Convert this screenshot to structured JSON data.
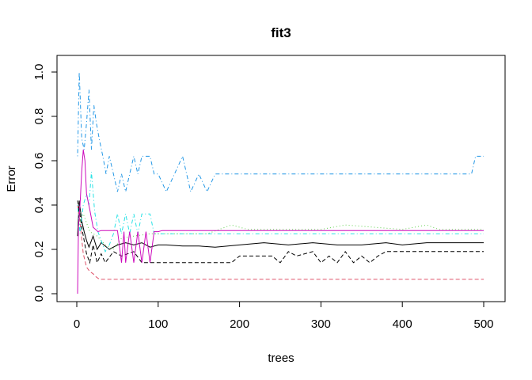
{
  "chart_data": {
    "type": "line",
    "title": "fit3",
    "xlabel": "trees",
    "ylabel": "Error",
    "xlim": [
      0,
      500
    ],
    "ylim": [
      0.0,
      1.0
    ],
    "x_ticks": [
      0,
      100,
      200,
      300,
      400,
      500
    ],
    "y_ticks": [
      0.0,
      0.2,
      0.4,
      0.6,
      0.8,
      1.0
    ],
    "x_tick_labels": [
      "0",
      "100",
      "200",
      "300",
      "400",
      "500"
    ],
    "y_tick_labels": [
      "0.0",
      "0.2",
      "0.4",
      "0.6",
      "0.8",
      "1.0"
    ],
    "grid": false,
    "legend": "none",
    "series": [
      {
        "color": "#000000",
        "dash": "solid",
        "x": [
          1,
          3,
          6,
          9,
          12,
          15,
          20,
          25,
          30,
          40,
          50,
          60,
          70,
          80,
          90,
          100,
          110,
          130,
          150,
          170,
          200,
          230,
          260,
          290,
          320,
          350,
          380,
          400,
          430,
          460,
          500
        ],
        "y": [
          0.26,
          0.42,
          0.33,
          0.28,
          0.24,
          0.21,
          0.26,
          0.2,
          0.23,
          0.2,
          0.22,
          0.23,
          0.22,
          0.23,
          0.21,
          0.22,
          0.22,
          0.215,
          0.215,
          0.21,
          0.22,
          0.23,
          0.22,
          0.23,
          0.22,
          0.22,
          0.23,
          0.22,
          0.23,
          0.23,
          0.23
        ]
      },
      {
        "color": "#000000",
        "dash": "dashed",
        "x": [
          1,
          3,
          6,
          9,
          12,
          16,
          20,
          25,
          30,
          35,
          45,
          55,
          70,
          80,
          100,
          150,
          190,
          200,
          240,
          250,
          260,
          270,
          290,
          300,
          310,
          320,
          330,
          340,
          350,
          360,
          370,
          380,
          400,
          500
        ],
        "y": [
          0.42,
          0.38,
          0.3,
          0.24,
          0.18,
          0.14,
          0.22,
          0.14,
          0.18,
          0.14,
          0.19,
          0.17,
          0.19,
          0.14,
          0.14,
          0.14,
          0.14,
          0.17,
          0.17,
          0.14,
          0.19,
          0.17,
          0.19,
          0.14,
          0.17,
          0.14,
          0.19,
          0.14,
          0.17,
          0.14,
          0.17,
          0.19,
          0.19,
          0.19
        ]
      },
      {
        "color": "#DF536B",
        "dash": "dashed",
        "x": [
          1,
          4,
          8,
          12,
          16,
          20,
          24,
          28,
          35,
          100,
          200,
          300,
          400,
          500
        ],
        "y": [
          0.4,
          0.32,
          0.18,
          0.12,
          0.1,
          0.09,
          0.075,
          0.065,
          0.065,
          0.065,
          0.065,
          0.065,
          0.065,
          0.065
        ]
      },
      {
        "color": "#61D04F",
        "dash": "dotted",
        "x": [
          1,
          8,
          16,
          25,
          35,
          45,
          55,
          70,
          90,
          100,
          130,
          160,
          190,
          210,
          250,
          300,
          330,
          400,
          430,
          445,
          500
        ],
        "y": [
          0.3,
          0.36,
          0.28,
          0.26,
          0.22,
          0.2,
          0.25,
          0.26,
          0.27,
          0.27,
          0.27,
          0.27,
          0.31,
          0.29,
          0.29,
          0.29,
          0.31,
          0.29,
          0.31,
          0.29,
          0.29
        ]
      },
      {
        "color": "#2297E6",
        "dash": "dotdash",
        "x": [
          1,
          3,
          6,
          9,
          12,
          15,
          18,
          21,
          24,
          28,
          32,
          36,
          40,
          45,
          50,
          55,
          60,
          65,
          70,
          75,
          80,
          85,
          90,
          95,
          100,
          110,
          120,
          130,
          140,
          150,
          160,
          170,
          200,
          300,
          400,
          485,
          490,
          500
        ],
        "y": [
          0.62,
          1.0,
          0.7,
          0.65,
          0.77,
          0.92,
          0.65,
          0.85,
          0.77,
          0.69,
          0.62,
          0.54,
          0.62,
          0.54,
          0.46,
          0.54,
          0.46,
          0.54,
          0.62,
          0.54,
          0.62,
          0.62,
          0.62,
          0.54,
          0.54,
          0.46,
          0.54,
          0.62,
          0.46,
          0.54,
          0.46,
          0.54,
          0.54,
          0.54,
          0.54,
          0.54,
          0.62,
          0.62
        ]
      },
      {
        "color": "#28E2E5",
        "dash": "dotdash",
        "x": [
          1,
          4,
          8,
          12,
          15,
          18,
          22,
          26,
          30,
          35,
          40,
          45,
          50,
          55,
          60,
          65,
          70,
          75,
          80,
          85,
          90,
          95,
          100,
          105,
          500
        ],
        "y": [
          0.4,
          0.27,
          0.4,
          0.45,
          0.4,
          0.55,
          0.37,
          0.28,
          0.24,
          0.19,
          0.22,
          0.27,
          0.36,
          0.27,
          0.36,
          0.27,
          0.36,
          0.27,
          0.36,
          0.36,
          0.36,
          0.27,
          0.27,
          0.27,
          0.27
        ]
      },
      {
        "color": "#CD0BBC",
        "dash": "solid",
        "x": [
          1,
          2,
          4,
          6,
          8,
          10,
          12,
          16,
          20,
          26,
          30,
          50,
          55,
          58,
          60,
          65,
          70,
          75,
          80,
          85,
          90,
          95,
          100,
          105,
          500
        ],
        "y": [
          0.0,
          0.3,
          0.4,
          0.55,
          0.65,
          0.6,
          0.45,
          0.38,
          0.3,
          0.28,
          0.285,
          0.285,
          0.14,
          0.28,
          0.14,
          0.28,
          0.14,
          0.28,
          0.14,
          0.28,
          0.14,
          0.28,
          0.28,
          0.285,
          0.285
        ]
      }
    ]
  }
}
